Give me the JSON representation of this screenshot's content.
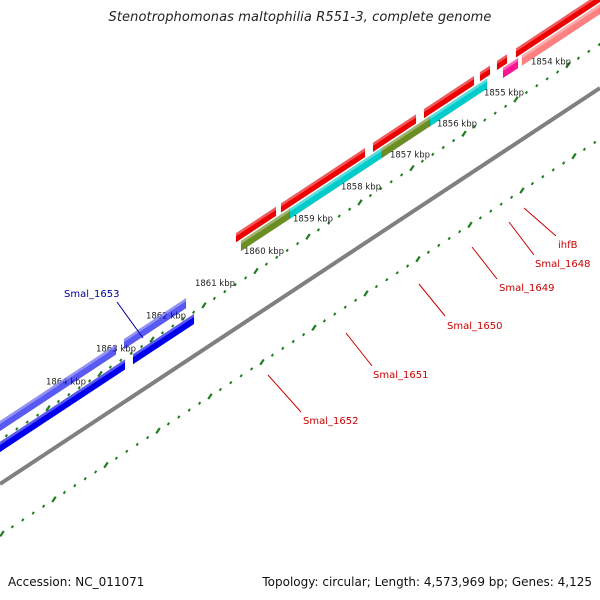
{
  "header": {
    "title": "Stenotrophomonas maltophilia R551-3, complete genome"
  },
  "footer": {
    "accession": "Accession: NC_011071",
    "summary": "Topology: circular; Length: 4,573,969 bp; Genes: 4,125"
  },
  "ruler": {
    "color": "#1e7d1e",
    "labels": [
      "1854 kbp",
      "1855 kbp",
      "1856 kbp",
      "1857 kbp",
      "1858 kbp",
      "1859 kbp",
      "1860 kbp",
      "1861 kbp",
      "1862 kbp",
      "1863 kbp",
      "1864 kbp"
    ]
  },
  "backbone": {
    "color": "#808080"
  },
  "genes": [
    {
      "name": "Smal_1653",
      "color": "#0000ee",
      "label_color": "#00009a"
    },
    {
      "name": "Smal_1652",
      "color": "#6b8e23",
      "label_color": "#cc0000"
    },
    {
      "name": "Smal_1651",
      "color": "#00cccc",
      "label_color": "#cc0000"
    },
    {
      "name": "Smal_1650",
      "color": "#ee0000",
      "label_color": "#cc0000"
    },
    {
      "name": "Smal_1649",
      "color": "#00cccc",
      "label_color": "#cc0000"
    },
    {
      "name": "Smal_1648",
      "color": "#ff1493",
      "label_color": "#cc0000"
    },
    {
      "name": "ihfB",
      "color": "#ff8080",
      "label_color": "#cc0000"
    }
  ]
}
